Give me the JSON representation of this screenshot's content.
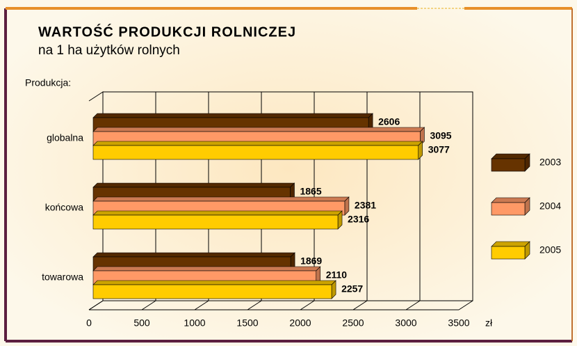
{
  "chart_data": {
    "type": "bar3d_horizontal",
    "title": "WARTOŚĆ PRODUKCJI ROLNICZEJ",
    "subtitle": "na 1 ha użytków rolnych",
    "y_label": "Produkcja:",
    "x_label": "zł",
    "categories": [
      "globalna",
      "końcowa",
      "towarowa"
    ],
    "series": [
      {
        "name": "2003",
        "color": "#663300",
        "values": [
          2606,
          1865,
          1869
        ]
      },
      {
        "name": "2004",
        "color": "#ff9966",
        "values": [
          3095,
          2381,
          2110
        ]
      },
      {
        "name": "2005",
        "color": "#ffcc00",
        "values": [
          3077,
          2316,
          2257
        ]
      }
    ],
    "xlim": [
      0,
      3500
    ],
    "xticks": [
      0,
      500,
      1000,
      1500,
      2000,
      2500,
      3000,
      3500
    ],
    "grid": true,
    "legend": "right"
  }
}
